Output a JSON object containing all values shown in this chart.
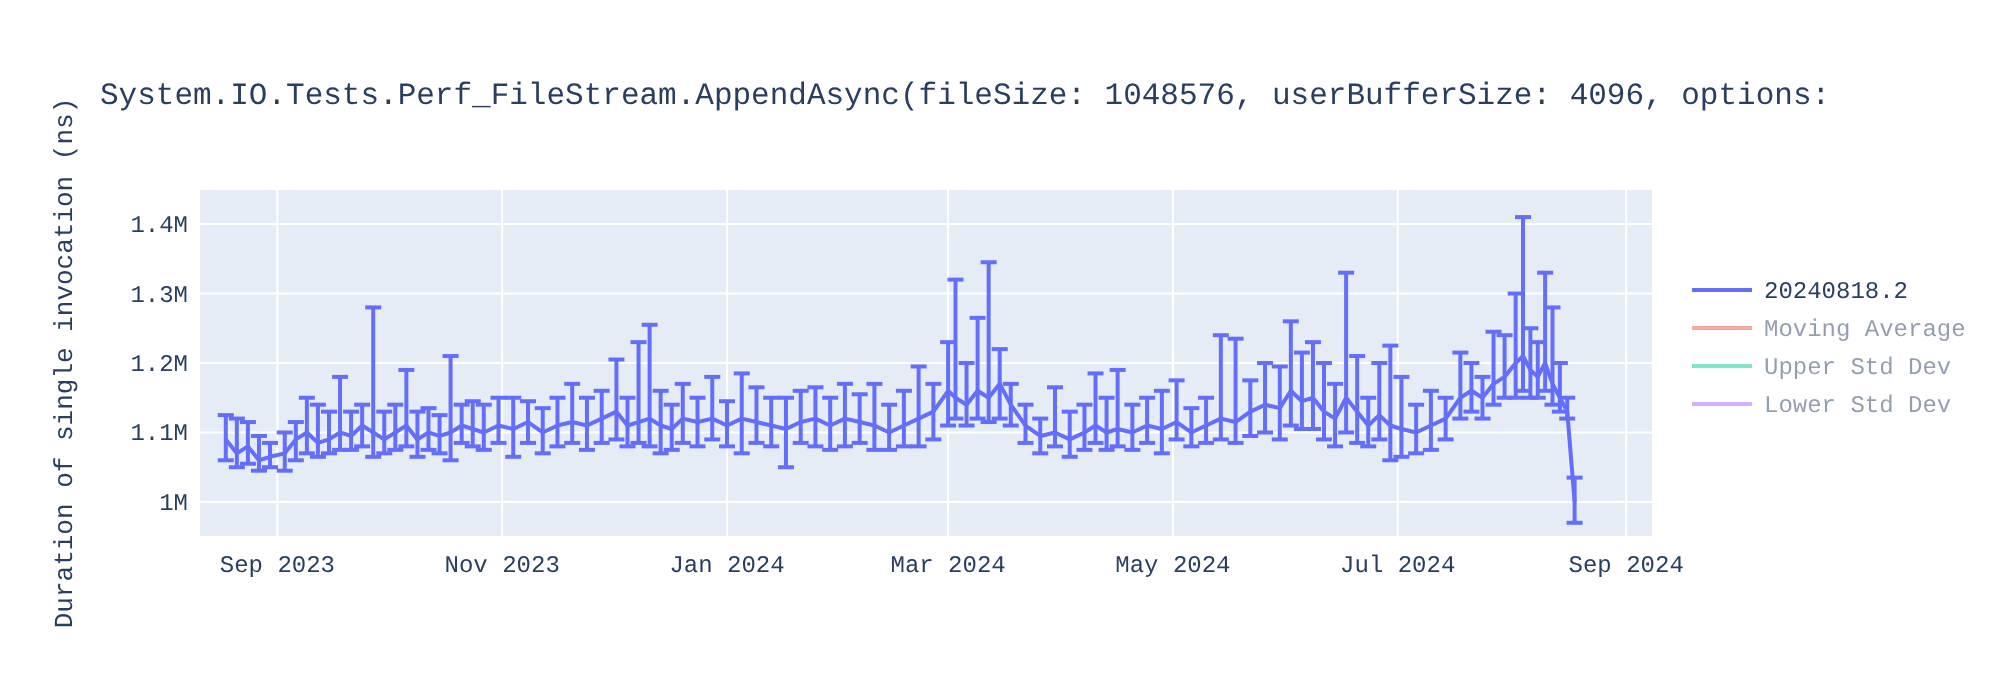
{
  "chart_data": {
    "type": "line",
    "title": "System.IO.Tests.Perf_FileStream.AppendAsync(fileSize: 1048576, userBufferSize: 4096, options:",
    "ylabel": "Duration of single invocation (ns)",
    "xlim": [
      "2023-08-11",
      "2024-09-08"
    ],
    "xticks": [
      {
        "value": "2023-09-01",
        "label": "Sep 2023"
      },
      {
        "value": "2023-11-01",
        "label": "Nov 2023"
      },
      {
        "value": "2024-01-01",
        "label": "Jan 2024"
      },
      {
        "value": "2024-03-01",
        "label": "Mar 2024"
      },
      {
        "value": "2024-05-01",
        "label": "May 2024"
      },
      {
        "value": "2024-07-01",
        "label": "Jul 2024"
      },
      {
        "value": "2024-09-01",
        "label": "Sep 2024"
      }
    ],
    "ylim": [
      951000,
      1449000
    ],
    "yticks": [
      {
        "value": 1000000,
        "label": "1M"
      },
      {
        "value": 1100000,
        "label": "1.1M"
      },
      {
        "value": 1200000,
        "label": "1.2M"
      },
      {
        "value": 1300000,
        "label": "1.3M"
      },
      {
        "value": 1400000,
        "label": "1.4M"
      }
    ],
    "grid": true,
    "legend": "top right",
    "marker": "none",
    "line_style": "solid",
    "series": [
      {
        "name": "20240818.2",
        "color": "#636efa",
        "x": [
          "2023-08-18",
          "2023-08-21",
          "2023-08-24",
          "2023-08-27",
          "2023-08-30",
          "2023-09-03",
          "2023-09-06",
          "2023-09-09",
          "2023-09-12",
          "2023-09-15",
          "2023-09-18",
          "2023-09-21",
          "2023-09-24",
          "2023-09-27",
          "2023-09-30",
          "2023-10-03",
          "2023-10-06",
          "2023-10-09",
          "2023-10-12",
          "2023-10-15",
          "2023-10-18",
          "2023-10-21",
          "2023-10-24",
          "2023-10-27",
          "2023-10-31",
          "2023-11-04",
          "2023-11-08",
          "2023-11-12",
          "2023-11-16",
          "2023-11-20",
          "2023-11-24",
          "2023-11-28",
          "2023-12-02",
          "2023-12-05",
          "2023-12-08",
          "2023-12-11",
          "2023-12-14",
          "2023-12-17",
          "2023-12-20",
          "2023-12-24",
          "2023-12-28",
          "2024-01-01",
          "2024-01-05",
          "2024-01-09",
          "2024-01-13",
          "2024-01-17",
          "2024-01-21",
          "2024-01-25",
          "2024-01-29",
          "2024-02-02",
          "2024-02-06",
          "2024-02-10",
          "2024-02-14",
          "2024-02-18",
          "2024-02-22",
          "2024-02-26",
          "2024-03-01",
          "2024-03-03",
          "2024-03-06",
          "2024-03-09",
          "2024-03-12",
          "2024-03-15",
          "2024-03-18",
          "2024-03-22",
          "2024-03-26",
          "2024-03-30",
          "2024-04-03",
          "2024-04-07",
          "2024-04-10",
          "2024-04-13",
          "2024-04-16",
          "2024-04-20",
          "2024-04-24",
          "2024-04-28",
          "2024-05-02",
          "2024-05-06",
          "2024-05-10",
          "2024-05-14",
          "2024-05-18",
          "2024-05-22",
          "2024-05-26",
          "2024-05-30",
          "2024-06-02",
          "2024-06-05",
          "2024-06-08",
          "2024-06-11",
          "2024-06-14",
          "2024-06-17",
          "2024-06-20",
          "2024-06-23",
          "2024-06-26",
          "2024-06-29",
          "2024-07-02",
          "2024-07-06",
          "2024-07-10",
          "2024-07-14",
          "2024-07-18",
          "2024-07-21",
          "2024-07-24",
          "2024-07-27",
          "2024-07-30",
          "2024-08-02",
          "2024-08-04",
          "2024-08-06",
          "2024-08-08",
          "2024-08-10",
          "2024-08-12",
          "2024-08-14",
          "2024-08-16",
          "2024-08-18"
        ],
        "values": [
          1090000,
          1070000,
          1080000,
          1060000,
          1065000,
          1070000,
          1090000,
          1100000,
          1085000,
          1090000,
          1100000,
          1095000,
          1110000,
          1100000,
          1090000,
          1100000,
          1110000,
          1090000,
          1100000,
          1095000,
          1100000,
          1110000,
          1105000,
          1100000,
          1110000,
          1105000,
          1115000,
          1100000,
          1110000,
          1115000,
          1110000,
          1120000,
          1130000,
          1110000,
          1115000,
          1120000,
          1110000,
          1105000,
          1120000,
          1115000,
          1120000,
          1110000,
          1120000,
          1115000,
          1110000,
          1105000,
          1115000,
          1120000,
          1110000,
          1120000,
          1115000,
          1110000,
          1100000,
          1110000,
          1120000,
          1130000,
          1160000,
          1150000,
          1140000,
          1160000,
          1150000,
          1170000,
          1140000,
          1110000,
          1095000,
          1100000,
          1090000,
          1100000,
          1110000,
          1100000,
          1105000,
          1100000,
          1110000,
          1105000,
          1115000,
          1100000,
          1110000,
          1120000,
          1115000,
          1130000,
          1140000,
          1135000,
          1160000,
          1145000,
          1150000,
          1130000,
          1120000,
          1150000,
          1130000,
          1110000,
          1125000,
          1110000,
          1105000,
          1100000,
          1110000,
          1120000,
          1150000,
          1160000,
          1150000,
          1170000,
          1180000,
          1200000,
          1210000,
          1190000,
          1180000,
          1200000,
          1170000,
          1150000,
          1130000,
          1000000
        ],
        "errors": [
          [
            1060000,
            1125000
          ],
          [
            1050000,
            1120000
          ],
          [
            1055000,
            1115000
          ],
          [
            1045000,
            1095000
          ],
          [
            1050000,
            1085000
          ],
          [
            1045000,
            1100000
          ],
          [
            1060000,
            1115000
          ],
          [
            1070000,
            1150000
          ],
          [
            1065000,
            1140000
          ],
          [
            1070000,
            1130000
          ],
          [
            1075000,
            1180000
          ],
          [
            1075000,
            1130000
          ],
          [
            1080000,
            1140000
          ],
          [
            1065000,
            1280000
          ],
          [
            1070000,
            1130000
          ],
          [
            1075000,
            1140000
          ],
          [
            1080000,
            1190000
          ],
          [
            1065000,
            1130000
          ],
          [
            1075000,
            1135000
          ],
          [
            1070000,
            1125000
          ],
          [
            1060000,
            1210000
          ],
          [
            1085000,
            1140000
          ],
          [
            1080000,
            1145000
          ],
          [
            1075000,
            1140000
          ],
          [
            1085000,
            1150000
          ],
          [
            1065000,
            1150000
          ],
          [
            1085000,
            1145000
          ],
          [
            1070000,
            1135000
          ],
          [
            1080000,
            1150000
          ],
          [
            1085000,
            1170000
          ],
          [
            1075000,
            1150000
          ],
          [
            1085000,
            1160000
          ],
          [
            1090000,
            1205000
          ],
          [
            1080000,
            1150000
          ],
          [
            1085000,
            1230000
          ],
          [
            1080000,
            1255000
          ],
          [
            1070000,
            1160000
          ],
          [
            1075000,
            1140000
          ],
          [
            1085000,
            1170000
          ],
          [
            1080000,
            1150000
          ],
          [
            1090000,
            1180000
          ],
          [
            1080000,
            1145000
          ],
          [
            1070000,
            1185000
          ],
          [
            1085000,
            1165000
          ],
          [
            1080000,
            1150000
          ],
          [
            1050000,
            1150000
          ],
          [
            1085000,
            1160000
          ],
          [
            1080000,
            1165000
          ],
          [
            1075000,
            1150000
          ],
          [
            1080000,
            1170000
          ],
          [
            1085000,
            1155000
          ],
          [
            1075000,
            1170000
          ],
          [
            1075000,
            1140000
          ],
          [
            1080000,
            1160000
          ],
          [
            1080000,
            1195000
          ],
          [
            1090000,
            1170000
          ],
          [
            1110000,
            1230000
          ],
          [
            1120000,
            1320000
          ],
          [
            1110000,
            1200000
          ],
          [
            1120000,
            1265000
          ],
          [
            1115000,
            1345000
          ],
          [
            1120000,
            1220000
          ],
          [
            1110000,
            1170000
          ],
          [
            1085000,
            1140000
          ],
          [
            1070000,
            1120000
          ],
          [
            1080000,
            1165000
          ],
          [
            1065000,
            1130000
          ],
          [
            1075000,
            1140000
          ],
          [
            1085000,
            1185000
          ],
          [
            1075000,
            1150000
          ],
          [
            1080000,
            1190000
          ],
          [
            1075000,
            1140000
          ],
          [
            1085000,
            1150000
          ],
          [
            1070000,
            1160000
          ],
          [
            1090000,
            1175000
          ],
          [
            1080000,
            1135000
          ],
          [
            1085000,
            1150000
          ],
          [
            1090000,
            1240000
          ],
          [
            1085000,
            1235000
          ],
          [
            1095000,
            1175000
          ],
          [
            1100000,
            1200000
          ],
          [
            1090000,
            1195000
          ],
          [
            1110000,
            1260000
          ],
          [
            1105000,
            1215000
          ],
          [
            1105000,
            1230000
          ],
          [
            1090000,
            1200000
          ],
          [
            1080000,
            1170000
          ],
          [
            1100000,
            1330000
          ],
          [
            1085000,
            1210000
          ],
          [
            1080000,
            1150000
          ],
          [
            1090000,
            1200000
          ],
          [
            1060000,
            1225000
          ],
          [
            1065000,
            1180000
          ],
          [
            1070000,
            1140000
          ],
          [
            1075000,
            1160000
          ],
          [
            1090000,
            1150000
          ],
          [
            1120000,
            1215000
          ],
          [
            1130000,
            1200000
          ],
          [
            1120000,
            1180000
          ],
          [
            1140000,
            1245000
          ],
          [
            1150000,
            1240000
          ],
          [
            1150000,
            1300000
          ],
          [
            1160000,
            1410000
          ],
          [
            1150000,
            1250000
          ],
          [
            1150000,
            1230000
          ],
          [
            1160000,
            1330000
          ],
          [
            1140000,
            1280000
          ],
          [
            1130000,
            1200000
          ],
          [
            1120000,
            1150000
          ],
          [
            970000,
            1035000
          ]
        ]
      },
      {
        "name": "Moving Average",
        "color": "#ef553b"
      },
      {
        "name": "Upper Std Dev",
        "color": "#00cc96"
      },
      {
        "name": "Lower Std Dev",
        "color": "#ab63fa"
      }
    ]
  }
}
